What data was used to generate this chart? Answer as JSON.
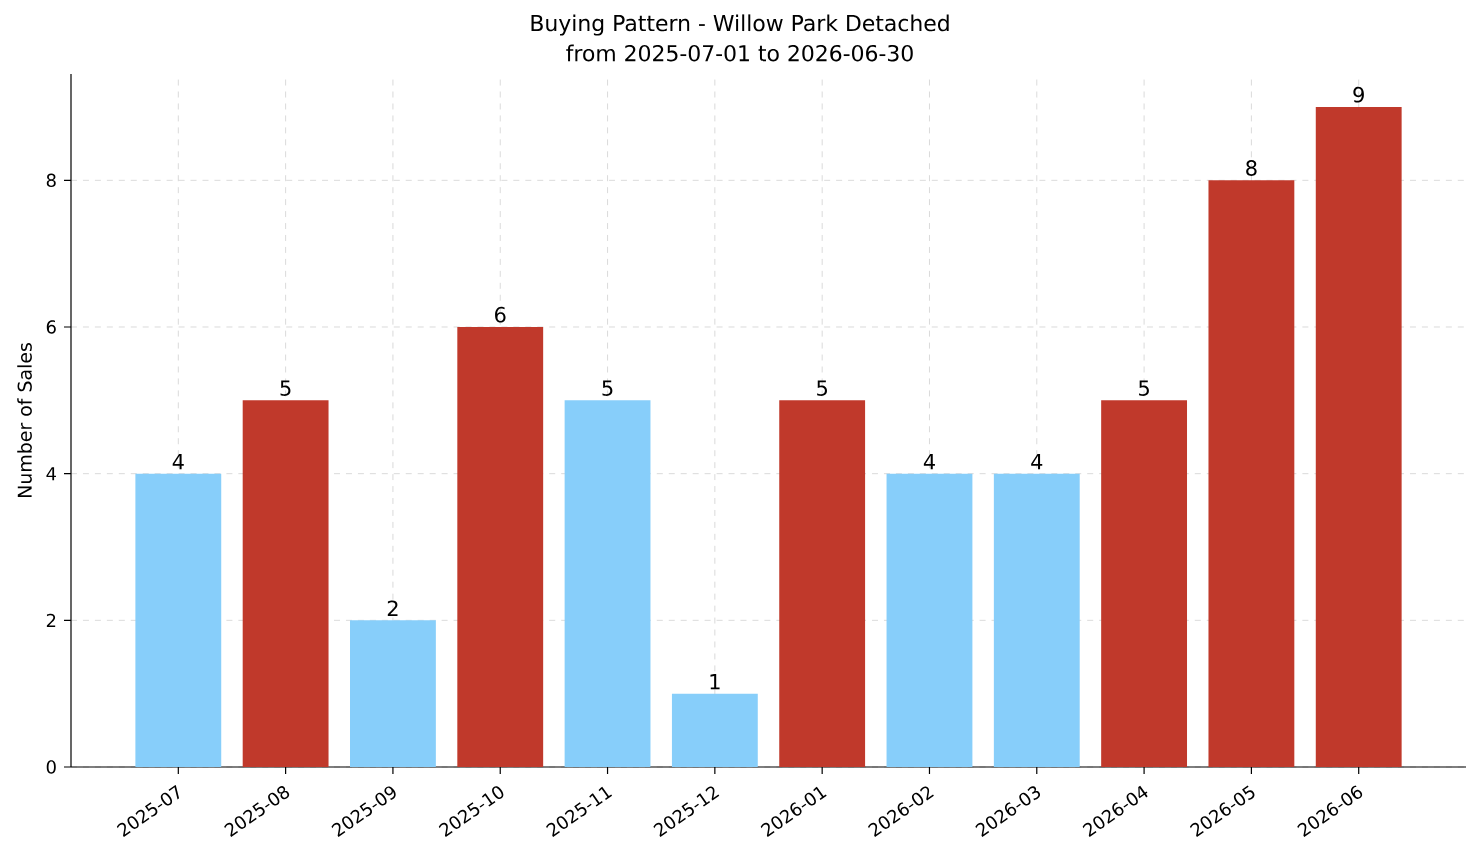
{
  "chart_data": {
    "type": "bar",
    "title": "Buying Pattern - Willow Park Detached",
    "subtitle": "from 2025-07-01 to 2026-06-30",
    "ylabel": "Number of Sales",
    "categories": [
      "2025-07",
      "2025-08",
      "2025-09",
      "2025-10",
      "2025-11",
      "2025-12",
      "2026-01",
      "2026-02",
      "2026-03",
      "2026-04",
      "2026-05",
      "2026-06"
    ],
    "values": [
      4,
      5,
      2,
      6,
      5,
      1,
      5,
      4,
      4,
      5,
      8,
      9
    ],
    "colors": [
      "#87cefa",
      "#c0392b",
      "#87cefa",
      "#c0392b",
      "#87cefa",
      "#87cefa",
      "#c0392b",
      "#87cefa",
      "#87cefa",
      "#c0392b",
      "#c0392b",
      "#c0392b"
    ],
    "ylim": [
      0,
      9.45
    ],
    "yticks": [
      0,
      2,
      4,
      6,
      8
    ],
    "grid": true,
    "data_labels": true
  }
}
